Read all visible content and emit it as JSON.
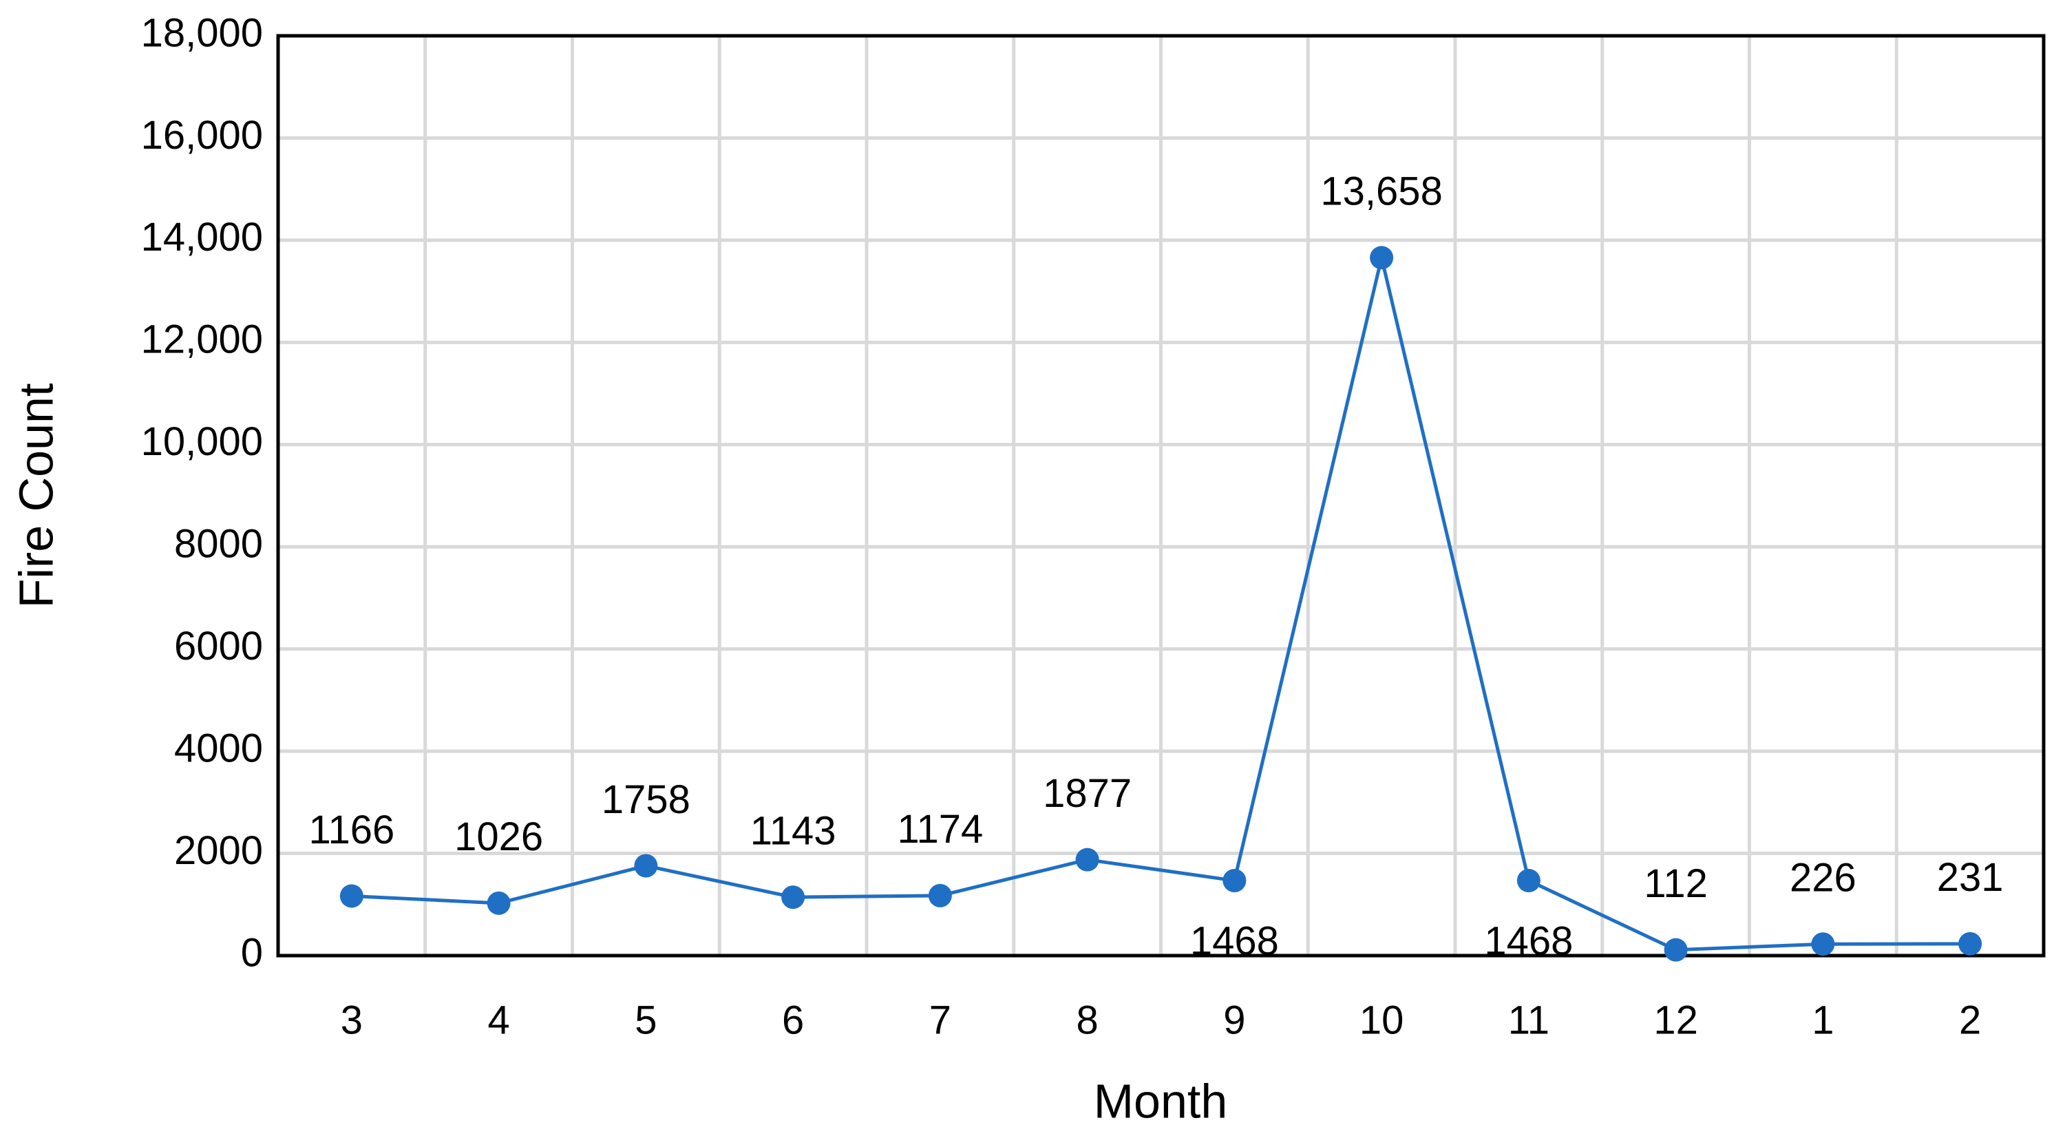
{
  "chart_data": {
    "type": "line",
    "x_label": "Month",
    "y_label": "Fire Count",
    "categories": [
      "3",
      "4",
      "5",
      "6",
      "7",
      "8",
      "9",
      "10",
      "11",
      "12",
      "1",
      "2"
    ],
    "values": [
      1166,
      1026,
      1758,
      1143,
      1174,
      1877,
      1468,
      13658,
      1468,
      112,
      226,
      231
    ],
    "value_labels": [
      "1166",
      "1026",
      "1758",
      "1143",
      "1174",
      "1877",
      "1468",
      "13,658",
      "1468",
      "112",
      "226",
      "231"
    ],
    "color": "#1f6fc5",
    "ylim": [
      0,
      18000
    ],
    "yticks": [
      0,
      2000,
      4000,
      6000,
      8000,
      {
        "value": 10000,
        "label": "10,000"
      },
      {
        "value": 12000,
        "label": "12,000"
      },
      {
        "value": 14000,
        "label": "14,000"
      },
      {
        "value": 16000,
        "label": "16,000"
      },
      {
        "value": 18000,
        "label": "18,000"
      }
    ],
    "grid": true
  }
}
